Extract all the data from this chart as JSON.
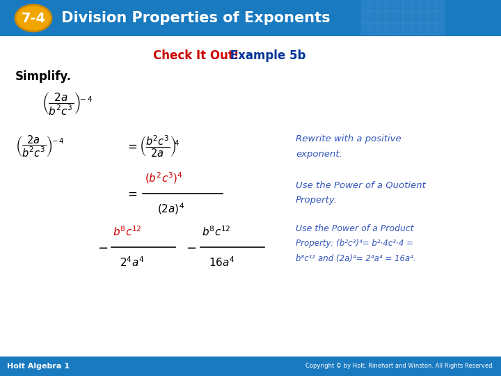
{
  "title_badge_text": "7-4",
  "title_text": " Division Properties of Exponents",
  "title_bg_color": "#1a7abf",
  "title_badge_color": "#f0a500",
  "subtitle_red": "Check It Out!",
  "subtitle_blue": " Example 5b",
  "subtitle_red_color": "#cc0000",
  "subtitle_blue_color": "#003399",
  "simplify_text": "Simplify.",
  "body_bg": "#ffffff",
  "footer_bg": "#1a7abf",
  "footer_left": "Holt Algebra 1",
  "footer_right": "Copyright © by Holt, Rinehart and Winston. All Rights Reserved.",
  "math_color": "#000000",
  "red_color": "#cc0000",
  "blue_italic_color": "#3355bb",
  "annotation1_line1": "Rewrite with a positive",
  "annotation1_line2": "exponent.",
  "annotation2_line1": "Use the Power of a Quotient",
  "annotation2_line2": "Property.",
  "annotation3_line1": "Use the Power of a Product",
  "annotation3_line2": "Property: (b²c³)⁴= b²⋅4c³⋅4 =",
  "annotation3_line3": "b⁸c¹² and (2a)⁴= 2⁴a⁴ = 16a⁴."
}
